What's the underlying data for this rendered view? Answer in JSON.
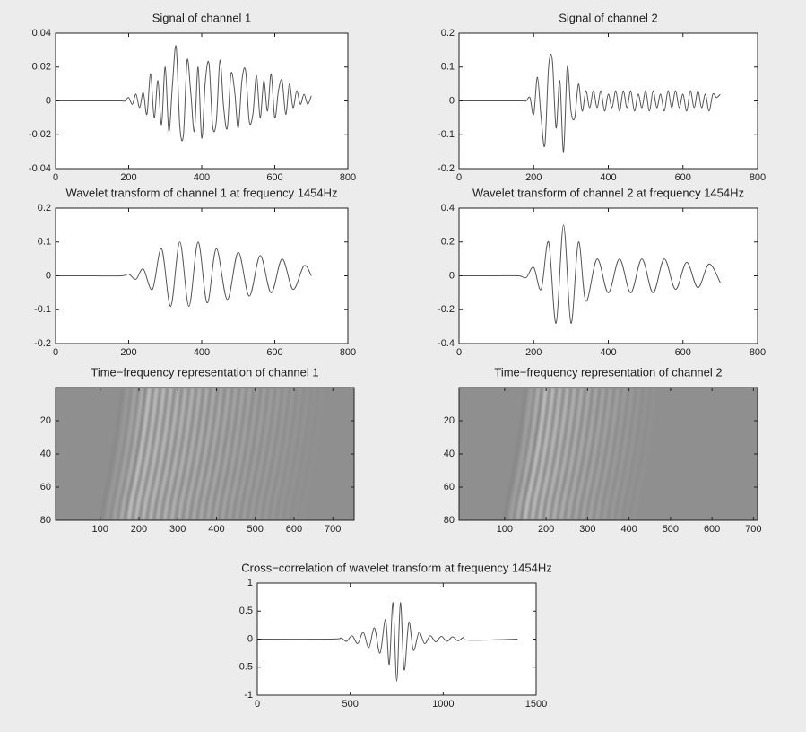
{
  "chart_data": [
    {
      "type": "line",
      "title": "Signal of channel 1",
      "x": [
        0,
        10,
        20,
        30,
        40,
        50,
        60,
        70,
        80,
        90,
        100,
        110,
        120,
        130,
        140,
        150,
        160,
        170,
        180,
        190,
        200,
        210,
        220,
        230,
        240,
        250,
        260,
        270,
        280,
        290,
        300,
        310,
        320,
        330,
        340,
        350,
        360,
        370,
        380,
        390,
        400,
        410,
        420,
        430,
        440,
        450,
        460,
        470,
        480,
        490,
        500,
        510,
        520,
        530,
        540,
        550,
        560,
        570,
        580,
        590,
        600,
        610,
        620,
        630,
        640,
        650,
        660,
        670,
        680,
        690,
        700
      ],
      "values": [
        0,
        0,
        0,
        0,
        0,
        0,
        0,
        0,
        0,
        0,
        0,
        0,
        0,
        0,
        0,
        0,
        0,
        0,
        0,
        0,
        0.002,
        -0.002,
        0.004,
        -0.004,
        0.005,
        -0.008,
        0.016,
        -0.01,
        0.012,
        -0.014,
        0.02,
        -0.018,
        0.01,
        0.032,
        -0.015,
        -0.02,
        0.024,
        0.005,
        -0.018,
        0.02,
        -0.022,
        0.012,
        0.022,
        -0.015,
        -0.012,
        0.024,
        -0.004,
        -0.016,
        0.016,
        0.006,
        -0.016,
        0.012,
        0.018,
        -0.012,
        -0.008,
        0.015,
        -0.01,
        0.012,
        -0.006,
        0.016,
        -0.01,
        0.006,
        0.012,
        -0.008,
        0.01,
        -0.004,
        0.006,
        -0.002,
        0.004,
        -0.002,
        0.003
      ],
      "color": "#555555",
      "xlim": [
        0,
        800
      ],
      "xticks": [
        0,
        200,
        400,
        600,
        800
      ],
      "ylim": [
        -0.04,
        0.04
      ],
      "yticks": [
        -0.04,
        -0.02,
        0,
        0.02,
        0.04
      ]
    },
    {
      "type": "line",
      "title": "Signal of channel 2",
      "x": [
        0,
        10,
        20,
        30,
        40,
        50,
        60,
        70,
        80,
        90,
        100,
        110,
        120,
        130,
        140,
        150,
        160,
        170,
        180,
        190,
        200,
        210,
        220,
        230,
        240,
        250,
        260,
        270,
        280,
        290,
        300,
        310,
        320,
        330,
        340,
        350,
        360,
        370,
        380,
        390,
        400,
        410,
        420,
        430,
        440,
        450,
        460,
        470,
        480,
        490,
        500,
        510,
        520,
        530,
        540,
        550,
        560,
        570,
        580,
        590,
        600,
        610,
        620,
        630,
        640,
        650,
        660,
        670,
        680,
        690,
        700
      ],
      "values": [
        0,
        0,
        0,
        0,
        0,
        0,
        0,
        0,
        0,
        0,
        0,
        0,
        0,
        0,
        0,
        0,
        0,
        0,
        0,
        0.01,
        -0.04,
        0.07,
        -0.05,
        -0.13,
        0.1,
        0.12,
        -0.08,
        0.06,
        -0.15,
        0.1,
        -0.03,
        -0.05,
        0.05,
        -0.03,
        0.03,
        -0.02,
        0.03,
        -0.02,
        0.03,
        -0.03,
        0.02,
        -0.02,
        0.03,
        -0.03,
        0.03,
        -0.02,
        0.03,
        -0.03,
        0.02,
        -0.02,
        0.03,
        -0.03,
        0.03,
        -0.02,
        0.02,
        -0.03,
        0.03,
        -0.02,
        0.03,
        -0.02,
        0.02,
        -0.03,
        0.03,
        -0.02,
        0.03,
        -0.02,
        0.02,
        -0.03,
        0.02,
        0.01,
        0.02
      ],
      "color": "#555555",
      "xlim": [
        0,
        800
      ],
      "xticks": [
        0,
        200,
        400,
        600,
        800
      ],
      "ylim": [
        -0.2,
        0.2
      ],
      "yticks": [
        -0.2,
        -0.1,
        0,
        0.1,
        0.2
      ]
    },
    {
      "type": "line",
      "title": "Wavelet transform of channel 1 at frequency 1454Hz",
      "x": [
        0,
        100,
        180,
        200,
        220,
        240,
        265,
        290,
        315,
        340,
        365,
        390,
        415,
        440,
        470,
        500,
        530,
        560,
        590,
        620,
        650,
        680,
        700
      ],
      "values": [
        0,
        0,
        0,
        0.005,
        -0.01,
        0.02,
        -0.04,
        0.08,
        -0.09,
        0.1,
        -0.09,
        0.1,
        -0.08,
        0.08,
        -0.07,
        0.07,
        -0.06,
        0.06,
        -0.05,
        0.05,
        -0.04,
        0.03,
        0
      ],
      "color": "#555555",
      "xlim": [
        0,
        800
      ],
      "xticks": [
        0,
        200,
        400,
        600,
        800
      ],
      "ylim": [
        -0.2,
        0.2
      ],
      "yticks": [
        -0.2,
        -0.1,
        0,
        0.1,
        0.2
      ]
    },
    {
      "type": "line",
      "title": "Wavelet transform of channel 2 at frequency 1454Hz",
      "x": [
        0,
        100,
        160,
        180,
        200,
        220,
        240,
        260,
        280,
        300,
        320,
        340,
        370,
        400,
        430,
        460,
        490,
        520,
        550,
        580,
        610,
        640,
        670,
        700
      ],
      "values": [
        0,
        0,
        0,
        -0.01,
        0.05,
        -0.08,
        0.2,
        -0.28,
        0.3,
        -0.28,
        0.2,
        -0.15,
        0.1,
        -0.1,
        0.1,
        -0.1,
        0.1,
        -0.1,
        0.1,
        -0.08,
        0.08,
        -0.07,
        0.07,
        -0.04
      ],
      "color": "#555555",
      "xlim": [
        0,
        800
      ],
      "xticks": [
        0,
        200,
        400,
        600,
        800
      ],
      "ylim": [
        -0.4,
        0.4
      ],
      "yticks": [
        -0.4,
        -0.2,
        0,
        0.2,
        0.4
      ]
    },
    {
      "type": "image",
      "title": "Time−frequency representation of channel 1",
      "xlim": [
        -15,
        755
      ],
      "xticks": [
        100,
        200,
        300,
        400,
        500,
        600,
        700
      ],
      "ylim": [
        80,
        0
      ],
      "yticks": [
        20,
        40,
        60,
        80
      ]
    },
    {
      "type": "image",
      "title": "Time−frequency representation of channel 2",
      "xlim": [
        -10,
        710
      ],
      "xticks": [
        100,
        200,
        300,
        400,
        500,
        600,
        700
      ],
      "ylim": [
        80,
        0
      ],
      "yticks": [
        20,
        40,
        60,
        80
      ]
    },
    {
      "type": "line",
      "title": "Cross−correlation of wavelet transform at frequency 1454Hz",
      "x": [
        0,
        400,
        450,
        480,
        510,
        540,
        570,
        600,
        630,
        660,
        690,
        710,
        730,
        750,
        770,
        790,
        815,
        840,
        870,
        900,
        930,
        960,
        990,
        1020,
        1050,
        1080,
        1110,
        1140,
        1400
      ],
      "values": [
        0,
        0,
        0.02,
        -0.04,
        0.06,
        -0.08,
        0.12,
        -0.15,
        0.2,
        -0.25,
        0.35,
        -0.45,
        0.65,
        -0.75,
        0.65,
        -0.55,
        0.3,
        -0.2,
        0.12,
        -0.08,
        0.06,
        -0.05,
        0.05,
        -0.04,
        0.04,
        -0.03,
        0.03,
        -0.02,
        0
      ],
      "color": "#555555",
      "xlim": [
        0,
        1500
      ],
      "xticks": [
        0,
        500,
        1000,
        1500
      ],
      "ylim": [
        -1,
        1
      ],
      "yticks": [
        -1,
        -0.5,
        0,
        0.5,
        1
      ]
    }
  ]
}
